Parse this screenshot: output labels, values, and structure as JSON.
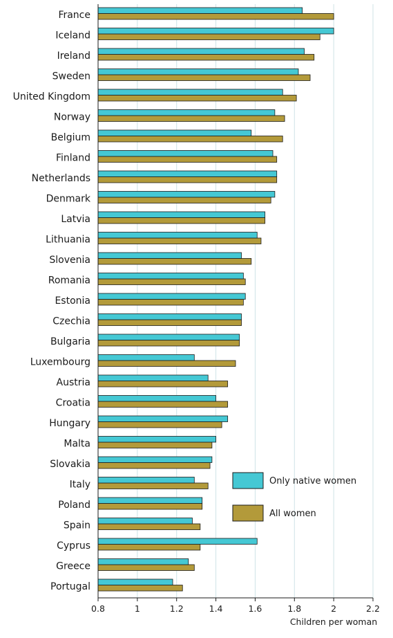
{
  "chart_data": {
    "type": "bar",
    "orientation": "horizontal",
    "categories": [
      "France",
      "Iceland",
      "Ireland",
      "Sweden",
      "United Kingdom",
      "Norway",
      "Belgium",
      "Finland",
      "Netherlands",
      "Denmark",
      "Latvia",
      "Lithuania",
      "Slovenia",
      "Romania",
      "Estonia",
      "Czechia",
      "Bulgaria",
      "Luxembourg",
      "Austria",
      "Croatia",
      "Hungary",
      "Malta",
      "Slovakia",
      "Italy",
      "Poland",
      "Spain",
      "Cyprus",
      "Greece",
      "Portugal"
    ],
    "series": [
      {
        "name": "Only native women",
        "color": "#45c8d4",
        "values": [
          1.84,
          2.0,
          1.85,
          1.82,
          1.74,
          1.7,
          1.58,
          1.69,
          1.71,
          1.7,
          1.65,
          1.61,
          1.53,
          1.54,
          1.55,
          1.53,
          1.52,
          1.29,
          1.36,
          1.4,
          1.46,
          1.4,
          1.38,
          1.29,
          1.33,
          1.28,
          1.61,
          1.26,
          1.18
        ]
      },
      {
        "name": "All women",
        "color": "#b39a3a",
        "values": [
          2.0,
          1.93,
          1.9,
          1.88,
          1.81,
          1.75,
          1.74,
          1.71,
          1.71,
          1.68,
          1.65,
          1.63,
          1.58,
          1.55,
          1.54,
          1.53,
          1.52,
          1.5,
          1.46,
          1.46,
          1.43,
          1.38,
          1.37,
          1.36,
          1.33,
          1.32,
          1.32,
          1.29,
          1.23
        ]
      }
    ],
    "xlabel": "Children per woman",
    "xlim": [
      0.8,
      2.2
    ],
    "xticks": [
      "0.8",
      "1",
      "1.2",
      "1.4",
      "1.6",
      "1.8",
      "2",
      "2.2"
    ],
    "grid": true,
    "legend": "lower-right inside plot"
  }
}
